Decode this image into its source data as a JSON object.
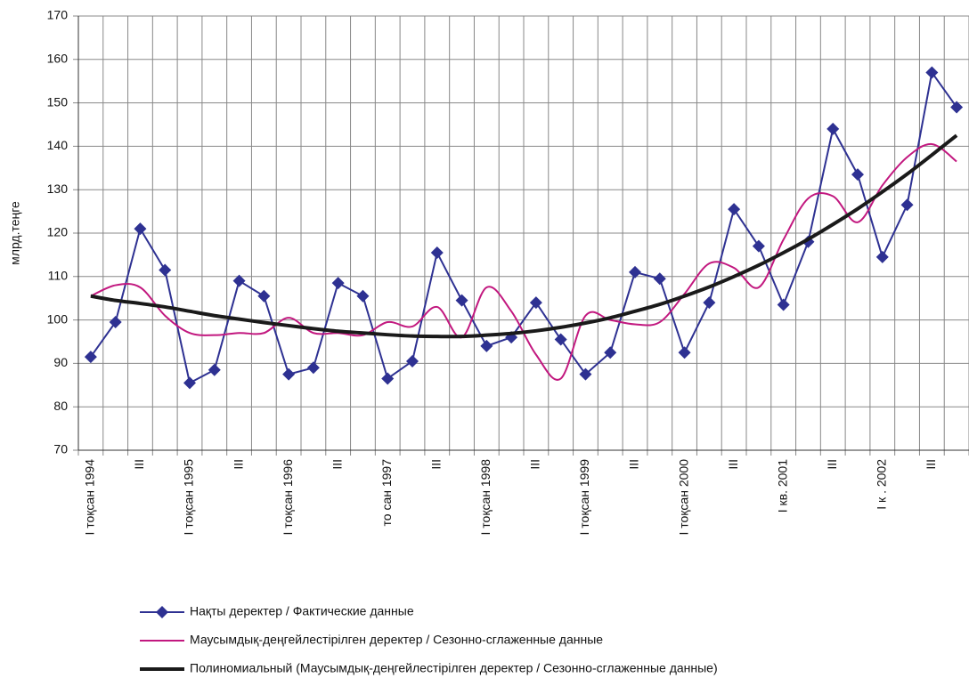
{
  "chart_data": {
    "type": "line",
    "y_label": "млрд.теңге",
    "categories": [
      "I тоқсан 1994",
      null,
      "III",
      null,
      "I тоқсан 1995",
      null,
      "III",
      null,
      "I тоқсан 1996",
      null,
      "III",
      null,
      "то сан 1997",
      null,
      "III",
      null,
      "I тоқсан 1998",
      null,
      "III",
      null,
      "I тоқсан 1999",
      null,
      "III",
      null,
      "I тоқсан 2000",
      null,
      "III",
      null,
      "I кв. 2001",
      null,
      "III",
      null,
      "I к . 2002",
      null,
      "III",
      null
    ],
    "series": [
      {
        "name": "Нақты деректер / Фактические данные",
        "color": "#2e3192",
        "marker": "diamond",
        "values": [
          91.5,
          99.5,
          121,
          111.5,
          85.5,
          88.5,
          109,
          105.5,
          87.5,
          89,
          108.5,
          105.5,
          86.5,
          90.5,
          115.5,
          104.5,
          94,
          96,
          104,
          95.5,
          87.5,
          92.5,
          111,
          109.5,
          92.5,
          104,
          125.5,
          117,
          103.5,
          118,
          144,
          133.5,
          114.5,
          126.5,
          157,
          149
        ]
      },
      {
        "name": "Маусымдық-деңгейлестірілген деректер / Сезонно-сглаженные данные",
        "color": "#c2187f",
        "smooth": true,
        "values": [
          105.5,
          108,
          107.5,
          101,
          97,
          96.5,
          97,
          97,
          100.5,
          97,
          97,
          96.5,
          99.5,
          98.5,
          103,
          96,
          107.5,
          102,
          92,
          86.5,
          101,
          100,
          99,
          99.5,
          106,
          113,
          112,
          107.5,
          118.5,
          128,
          128.5,
          122.5,
          131,
          137.5,
          140.5,
          136.5
        ]
      },
      {
        "name": "Полиномиальный (Маусымдық-деңгейлестірілген деректер / Сезонно-сглаженные данные)",
        "color": "#1a1a1a",
        "smooth": true,
        "width": 4,
        "values": [
          105.5,
          104.5,
          103.8,
          103,
          102,
          101,
          100.2,
          99.4,
          98.7,
          98,
          97.4,
          97,
          96.6,
          96.3,
          96.2,
          96.2,
          96.5,
          96.9,
          97.5,
          98.3,
          99.3,
          100.5,
          102,
          103.6,
          105.5,
          107.6,
          110,
          112.6,
          115.5,
          118.6,
          122,
          125.6,
          129.5,
          133.6,
          138,
          142.5
        ]
      }
    ],
    "ylim": [
      70,
      170
    ],
    "yticks": [
      70,
      80,
      90,
      100,
      110,
      120,
      130,
      140,
      150,
      160,
      170
    ],
    "grid": true,
    "legend": "bottom"
  }
}
